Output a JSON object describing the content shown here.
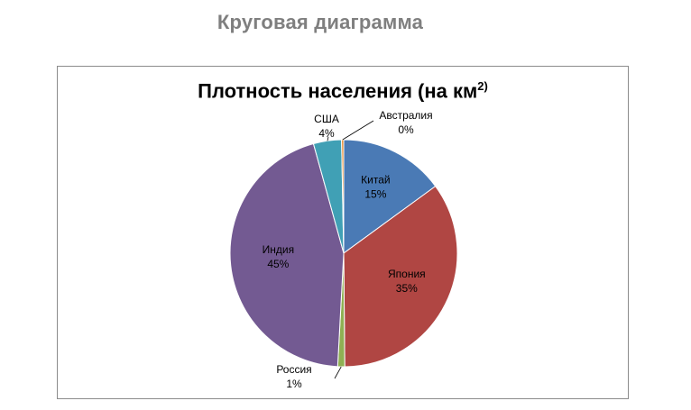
{
  "slide": {
    "title": "Круговая диаграмма"
  },
  "chart_data": {
    "type": "pie",
    "title": "Плотность населения (на км",
    "title_superscript": "2)",
    "categories": [
      "Китай",
      "Япония",
      "Россия",
      "Индия",
      "США",
      "Австралия"
    ],
    "values": [
      15,
      35,
      1,
      45,
      4,
      0.3
    ],
    "percent_labels": [
      "15%",
      "35%",
      "1%",
      "45%",
      "4%",
      "0%"
    ],
    "colors": [
      "#4a7ab5",
      "#b04643",
      "#8fb053",
      "#735a92",
      "#40a0b5",
      "#e8821e"
    ],
    "start_angle_deg": 0,
    "legend": "none"
  }
}
